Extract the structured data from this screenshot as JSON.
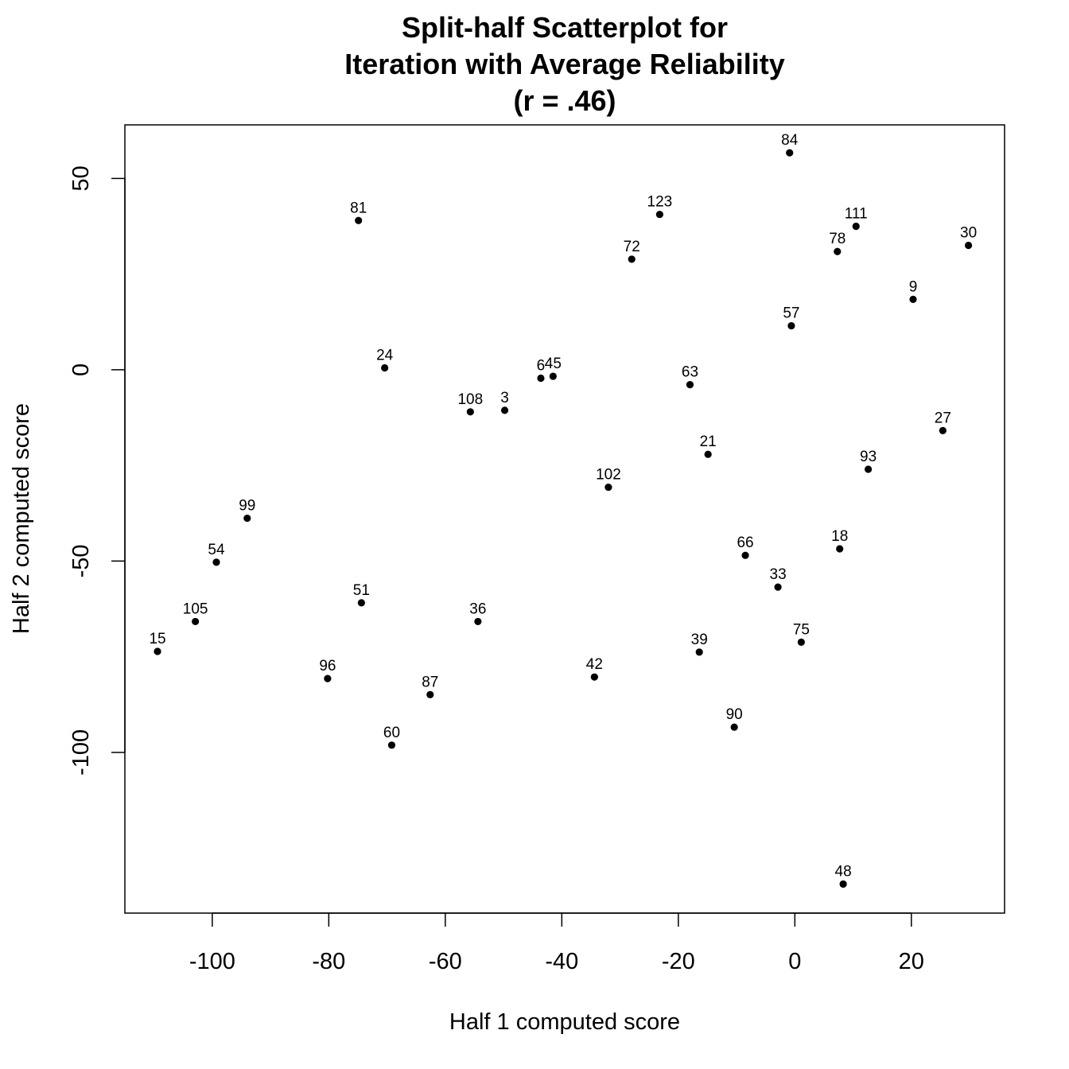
{
  "chart_data": {
    "type": "scatter",
    "title_lines": [
      "Split-half Scatterplot for",
      "Iteration with Average Reliability",
      "(r = .46)"
    ],
    "xlabel": "Half 1 computed score",
    "ylabel": "Half 2 computed score",
    "xlim": [
      -115,
      36
    ],
    "ylim": [
      -142,
      64
    ],
    "xticks": [
      -100,
      -80,
      -60,
      -40,
      -20,
      0,
      20
    ],
    "yticks": [
      -100,
      -50,
      0,
      50
    ],
    "xtick_labels": [
      "-100",
      "-80",
      "-60",
      "-40",
      "-20",
      "0",
      "20"
    ],
    "ytick_labels": [
      "-100",
      "-50",
      "0",
      "50"
    ],
    "grid": false,
    "points": [
      {
        "label": "84",
        "x": -0.9,
        "y": 56.7
      },
      {
        "label": "123",
        "x": -23.2,
        "y": 40.6
      },
      {
        "label": "111",
        "x": 10.5,
        "y": 37.5
      },
      {
        "label": "81",
        "x": -74.9,
        "y": 39.0
      },
      {
        "label": "30",
        "x": 29.8,
        "y": 32.5
      },
      {
        "label": "78",
        "x": 7.3,
        "y": 30.9
      },
      {
        "label": "72",
        "x": -28.0,
        "y": 28.9
      },
      {
        "label": "9",
        "x": 20.3,
        "y": 18.4
      },
      {
        "label": "57",
        "x": -0.6,
        "y": 11.5
      },
      {
        "label": "24",
        "x": -70.4,
        "y": 0.5
      },
      {
        "label": "6",
        "x": -43.6,
        "y": -2.2
      },
      {
        "label": "45",
        "x": -41.5,
        "y": -1.7
      },
      {
        "label": "63",
        "x": -18.0,
        "y": -3.9
      },
      {
        "label": "108",
        "x": -55.7,
        "y": -11.0
      },
      {
        "label": "3",
        "x": -49.8,
        "y": -10.6
      },
      {
        "label": "27",
        "x": 25.4,
        "y": -15.9
      },
      {
        "label": "21",
        "x": -14.9,
        "y": -22.1
      },
      {
        "label": "93",
        "x": 12.6,
        "y": -26.0
      },
      {
        "label": "102",
        "x": -32.0,
        "y": -30.7
      },
      {
        "label": "99",
        "x": -94.0,
        "y": -38.8
      },
      {
        "label": "18",
        "x": 7.7,
        "y": -46.8
      },
      {
        "label": "66",
        "x": -8.5,
        "y": -48.5
      },
      {
        "label": "54",
        "x": -99.3,
        "y": -50.3
      },
      {
        "label": "33",
        "x": -2.9,
        "y": -56.8
      },
      {
        "label": "51",
        "x": -74.4,
        "y": -60.9
      },
      {
        "label": "105",
        "x": -102.9,
        "y": -65.8
      },
      {
        "label": "36",
        "x": -54.4,
        "y": -65.8
      },
      {
        "label": "75",
        "x": 1.1,
        "y": -71.2
      },
      {
        "label": "15",
        "x": -109.4,
        "y": -73.6
      },
      {
        "label": "39",
        "x": -16.4,
        "y": -73.8
      },
      {
        "label": "42",
        "x": -34.4,
        "y": -80.3
      },
      {
        "label": "96",
        "x": -80.2,
        "y": -80.7
      },
      {
        "label": "87",
        "x": -62.6,
        "y": -84.9
      },
      {
        "label": "90",
        "x": -10.4,
        "y": -93.4
      },
      {
        "label": "60",
        "x": -69.2,
        "y": -98.1
      },
      {
        "label": "48",
        "x": 8.3,
        "y": -134.4
      }
    ]
  }
}
